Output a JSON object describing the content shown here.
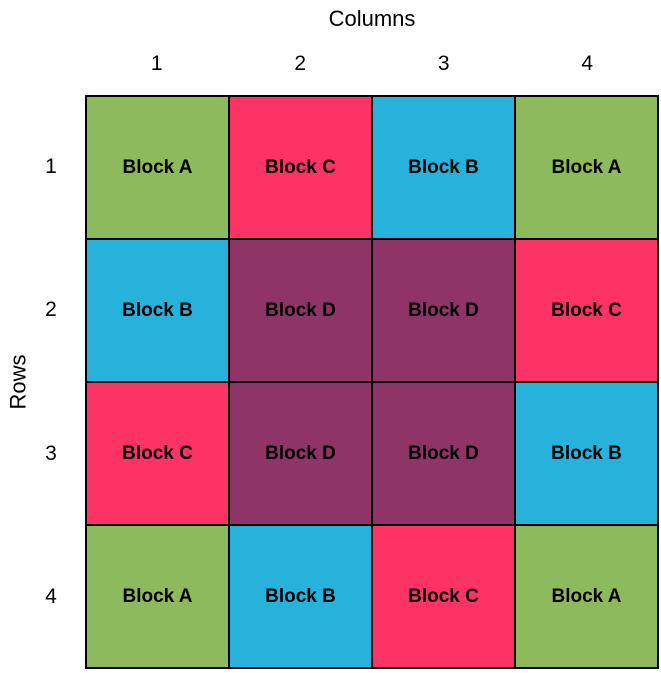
{
  "chart_data": {
    "type": "heatmap",
    "title": "Columns",
    "col_axis_label": "Columns",
    "row_axis_label": "Rows",
    "columns": [
      "1",
      "2",
      "3",
      "4"
    ],
    "rows": [
      "1",
      "2",
      "3",
      "4"
    ],
    "cell_labels": [
      [
        "Block A",
        "Block C",
        "Block B",
        "Block A"
      ],
      [
        "Block B",
        "Block D",
        "Block D",
        "Block C"
      ],
      [
        "Block C",
        "Block D",
        "Block D",
        "Block B"
      ],
      [
        "Block A",
        "Block B",
        "Block C",
        "Block A"
      ]
    ],
    "block_colors": {
      "Block A": "#8CBA5C",
      "Block B": "#27B2DB",
      "Block C": "#FC3364",
      "Block D": "#8E3467"
    },
    "grid_line_color": "#000000",
    "background_color": "#FFFFFF",
    "text_color": "#000000",
    "legend": "none",
    "layout": {
      "col_axis_title_position": "top",
      "row_axis_title_position": "left-rotated",
      "grid_rows": 4,
      "grid_cols": 4
    }
  }
}
